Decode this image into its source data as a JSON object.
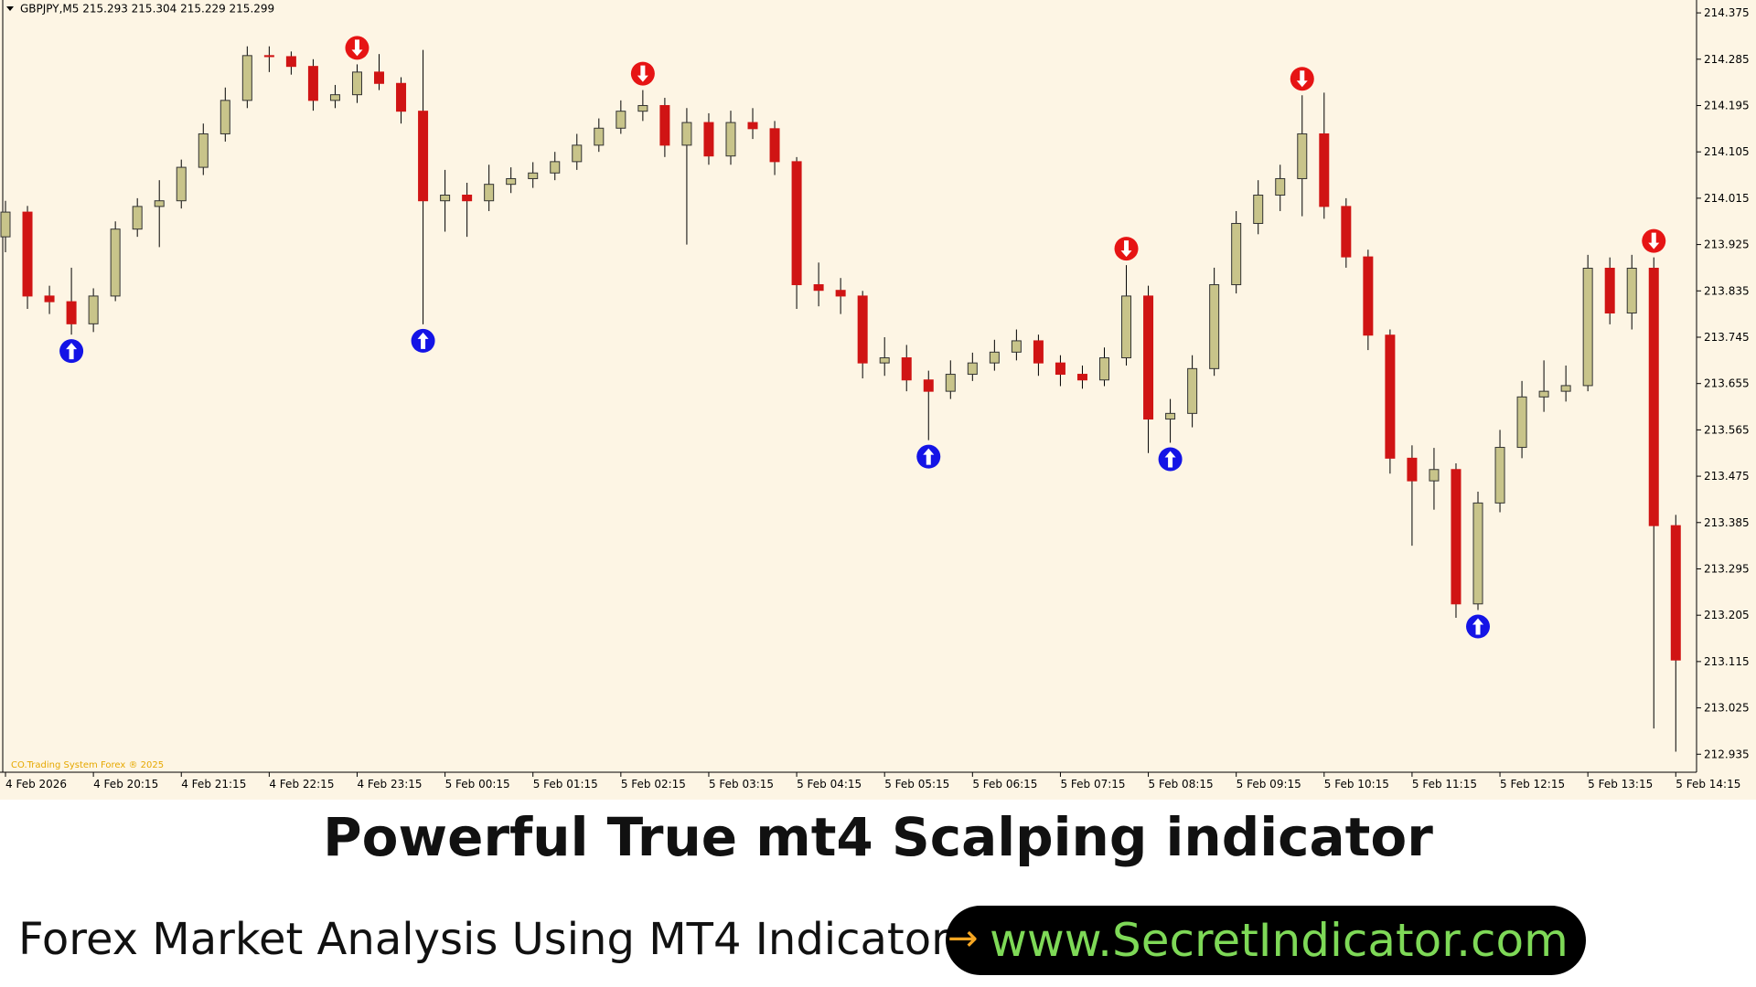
{
  "chart_data": {
    "type": "candlestick",
    "header": "GBPJPY,M5  215.293 215.304 215.229 215.299",
    "watermark": "CO.Trading System Forex ® 2025",
    "categories": [
      "4 Feb 2026",
      null,
      null,
      null,
      "4 Feb 20:15",
      null,
      null,
      null,
      "4 Feb 21:15",
      null,
      null,
      null,
      "4 Feb 22:15",
      null,
      null,
      null,
      "4 Feb 23:15",
      null,
      null,
      null,
      "5 Feb 00:15",
      null,
      null,
      null,
      "5 Feb 01:15",
      null,
      null,
      null,
      "5 Feb 02:15",
      null,
      null,
      null,
      "5 Feb 03:15",
      null,
      null,
      null,
      "5 Feb 04:15",
      null,
      null,
      null,
      "5 Feb 05:15",
      null,
      null,
      null,
      "5 Feb 06:15",
      null,
      null,
      null,
      "5 Feb 07:15",
      null,
      null,
      null,
      "5 Feb 08:15",
      null,
      null,
      null,
      "5 Feb 09:15",
      null,
      null,
      null,
      "5 Feb 10:15",
      null,
      null,
      null,
      "5 Feb 11:15",
      null,
      null,
      null,
      "5 Feb 12:15",
      null,
      null,
      null,
      "5 Feb 13:15",
      null,
      null,
      null,
      "5 Feb 14:15"
    ],
    "ohlc": [
      [
        213.94,
        214.01,
        213.91,
        213.988
      ],
      [
        213.988,
        214.0,
        213.8,
        213.825
      ],
      [
        213.825,
        213.845,
        213.79,
        213.814
      ],
      [
        213.814,
        213.88,
        213.75,
        213.771
      ],
      [
        213.771,
        213.84,
        213.755,
        213.825
      ],
      [
        213.825,
        213.97,
        213.815,
        213.955
      ],
      [
        213.955,
        214.015,
        213.94,
        213.999
      ],
      [
        213.999,
        214.05,
        213.92,
        214.01
      ],
      [
        214.01,
        214.09,
        213.995,
        214.075
      ],
      [
        214.075,
        214.16,
        214.06,
        214.14
      ],
      [
        214.14,
        214.23,
        214.125,
        214.205
      ],
      [
        214.205,
        214.31,
        214.19,
        214.292
      ],
      [
        214.292,
        214.31,
        214.26,
        214.29
      ],
      [
        214.29,
        214.3,
        214.255,
        214.271
      ],
      [
        214.271,
        214.285,
        214.185,
        214.205
      ],
      [
        214.205,
        214.235,
        214.19,
        214.216
      ],
      [
        214.216,
        214.275,
        214.2,
        214.26
      ],
      [
        214.26,
        214.295,
        214.225,
        214.238
      ],
      [
        214.238,
        214.25,
        214.16,
        214.184
      ],
      [
        214.184,
        214.303,
        213.77,
        214.01
      ],
      [
        214.01,
        214.07,
        213.95,
        214.021
      ],
      [
        214.021,
        214.045,
        213.94,
        214.01
      ],
      [
        214.01,
        214.08,
        213.99,
        214.042
      ],
      [
        214.042,
        214.075,
        214.025,
        214.053
      ],
      [
        214.053,
        214.085,
        214.035,
        214.064
      ],
      [
        214.064,
        214.105,
        214.05,
        214.086
      ],
      [
        214.086,
        214.14,
        214.07,
        214.118
      ],
      [
        214.118,
        214.17,
        214.105,
        214.151
      ],
      [
        214.151,
        214.205,
        214.14,
        214.184
      ],
      [
        214.184,
        214.225,
        214.165,
        214.195
      ],
      [
        214.195,
        214.21,
        214.095,
        214.118
      ],
      [
        214.118,
        214.19,
        213.925,
        214.162
      ],
      [
        214.162,
        214.18,
        214.08,
        214.097
      ],
      [
        214.097,
        214.185,
        214.08,
        214.162
      ],
      [
        214.162,
        214.19,
        214.13,
        214.15
      ],
      [
        214.15,
        214.165,
        214.06,
        214.086
      ],
      [
        214.086,
        214.095,
        213.8,
        213.847
      ],
      [
        213.847,
        213.89,
        213.805,
        213.836
      ],
      [
        213.836,
        213.86,
        213.79,
        213.825
      ],
      [
        213.825,
        213.835,
        213.665,
        213.695
      ],
      [
        213.695,
        213.745,
        213.67,
        213.705
      ],
      [
        213.705,
        213.73,
        213.64,
        213.662
      ],
      [
        213.662,
        213.68,
        213.545,
        213.64
      ],
      [
        213.64,
        213.7,
        213.625,
        213.673
      ],
      [
        213.673,
        213.715,
        213.66,
        213.695
      ],
      [
        213.695,
        213.74,
        213.68,
        213.716
      ],
      [
        213.716,
        213.76,
        213.7,
        213.738
      ],
      [
        213.738,
        213.75,
        213.67,
        213.695
      ],
      [
        213.695,
        213.71,
        213.65,
        213.673
      ],
      [
        213.673,
        213.69,
        213.645,
        213.662
      ],
      [
        213.662,
        213.725,
        213.65,
        213.705
      ],
      [
        213.705,
        213.885,
        213.69,
        213.825
      ],
      [
        213.825,
        213.845,
        213.52,
        213.586
      ],
      [
        213.586,
        213.625,
        213.54,
        213.597
      ],
      [
        213.597,
        213.71,
        213.57,
        213.684
      ],
      [
        213.684,
        213.88,
        213.67,
        213.847
      ],
      [
        213.847,
        213.99,
        213.83,
        213.966
      ],
      [
        213.966,
        214.05,
        213.945,
        214.021
      ],
      [
        214.021,
        214.08,
        213.99,
        214.053
      ],
      [
        214.053,
        214.215,
        213.98,
        214.14
      ],
      [
        214.14,
        214.22,
        213.975,
        213.999
      ],
      [
        213.999,
        214.015,
        213.88,
        213.901
      ],
      [
        213.901,
        213.915,
        213.72,
        213.749
      ],
      [
        213.749,
        213.76,
        213.48,
        213.51
      ],
      [
        213.51,
        213.535,
        213.34,
        213.466
      ],
      [
        213.466,
        213.53,
        213.41,
        213.488
      ],
      [
        213.488,
        213.5,
        213.2,
        213.227
      ],
      [
        213.227,
        213.445,
        213.215,
        213.423
      ],
      [
        213.423,
        213.565,
        213.405,
        213.531
      ],
      [
        213.531,
        213.66,
        213.51,
        213.629
      ],
      [
        213.629,
        213.7,
        213.6,
        213.64
      ],
      [
        213.64,
        213.69,
        213.62,
        213.651
      ],
      [
        213.651,
        213.905,
        213.64,
        213.879
      ],
      [
        213.879,
        213.9,
        213.77,
        213.792
      ],
      [
        213.792,
        213.905,
        213.76,
        213.879
      ],
      [
        213.879,
        213.9,
        212.985,
        213.379
      ],
      [
        213.379,
        213.4,
        212.94,
        213.118
      ]
    ],
    "bull_color": "#c8c48a",
    "bear_color": "#d01414",
    "up_arrows": [
      3,
      19,
      42,
      53,
      67
    ],
    "up_color": "#1414e6",
    "down_arrows": [
      16,
      29,
      51,
      59,
      75
    ],
    "down_color": "#e61414",
    "ylim": [
      212.9,
      214.4
    ],
    "yticks": [
      214.375,
      214.285,
      214.195,
      214.105,
      214.015,
      213.925,
      213.835,
      213.745,
      213.655,
      213.565,
      213.475,
      213.385,
      213.295,
      213.205,
      213.115,
      213.025,
      212.935
    ]
  },
  "banner": {
    "title": "Powerful True mt4 Scalping indicator",
    "subtitle": "Forex Market Analysis Using MT4 Indicator",
    "url": "www.SecretIndicator.com"
  }
}
